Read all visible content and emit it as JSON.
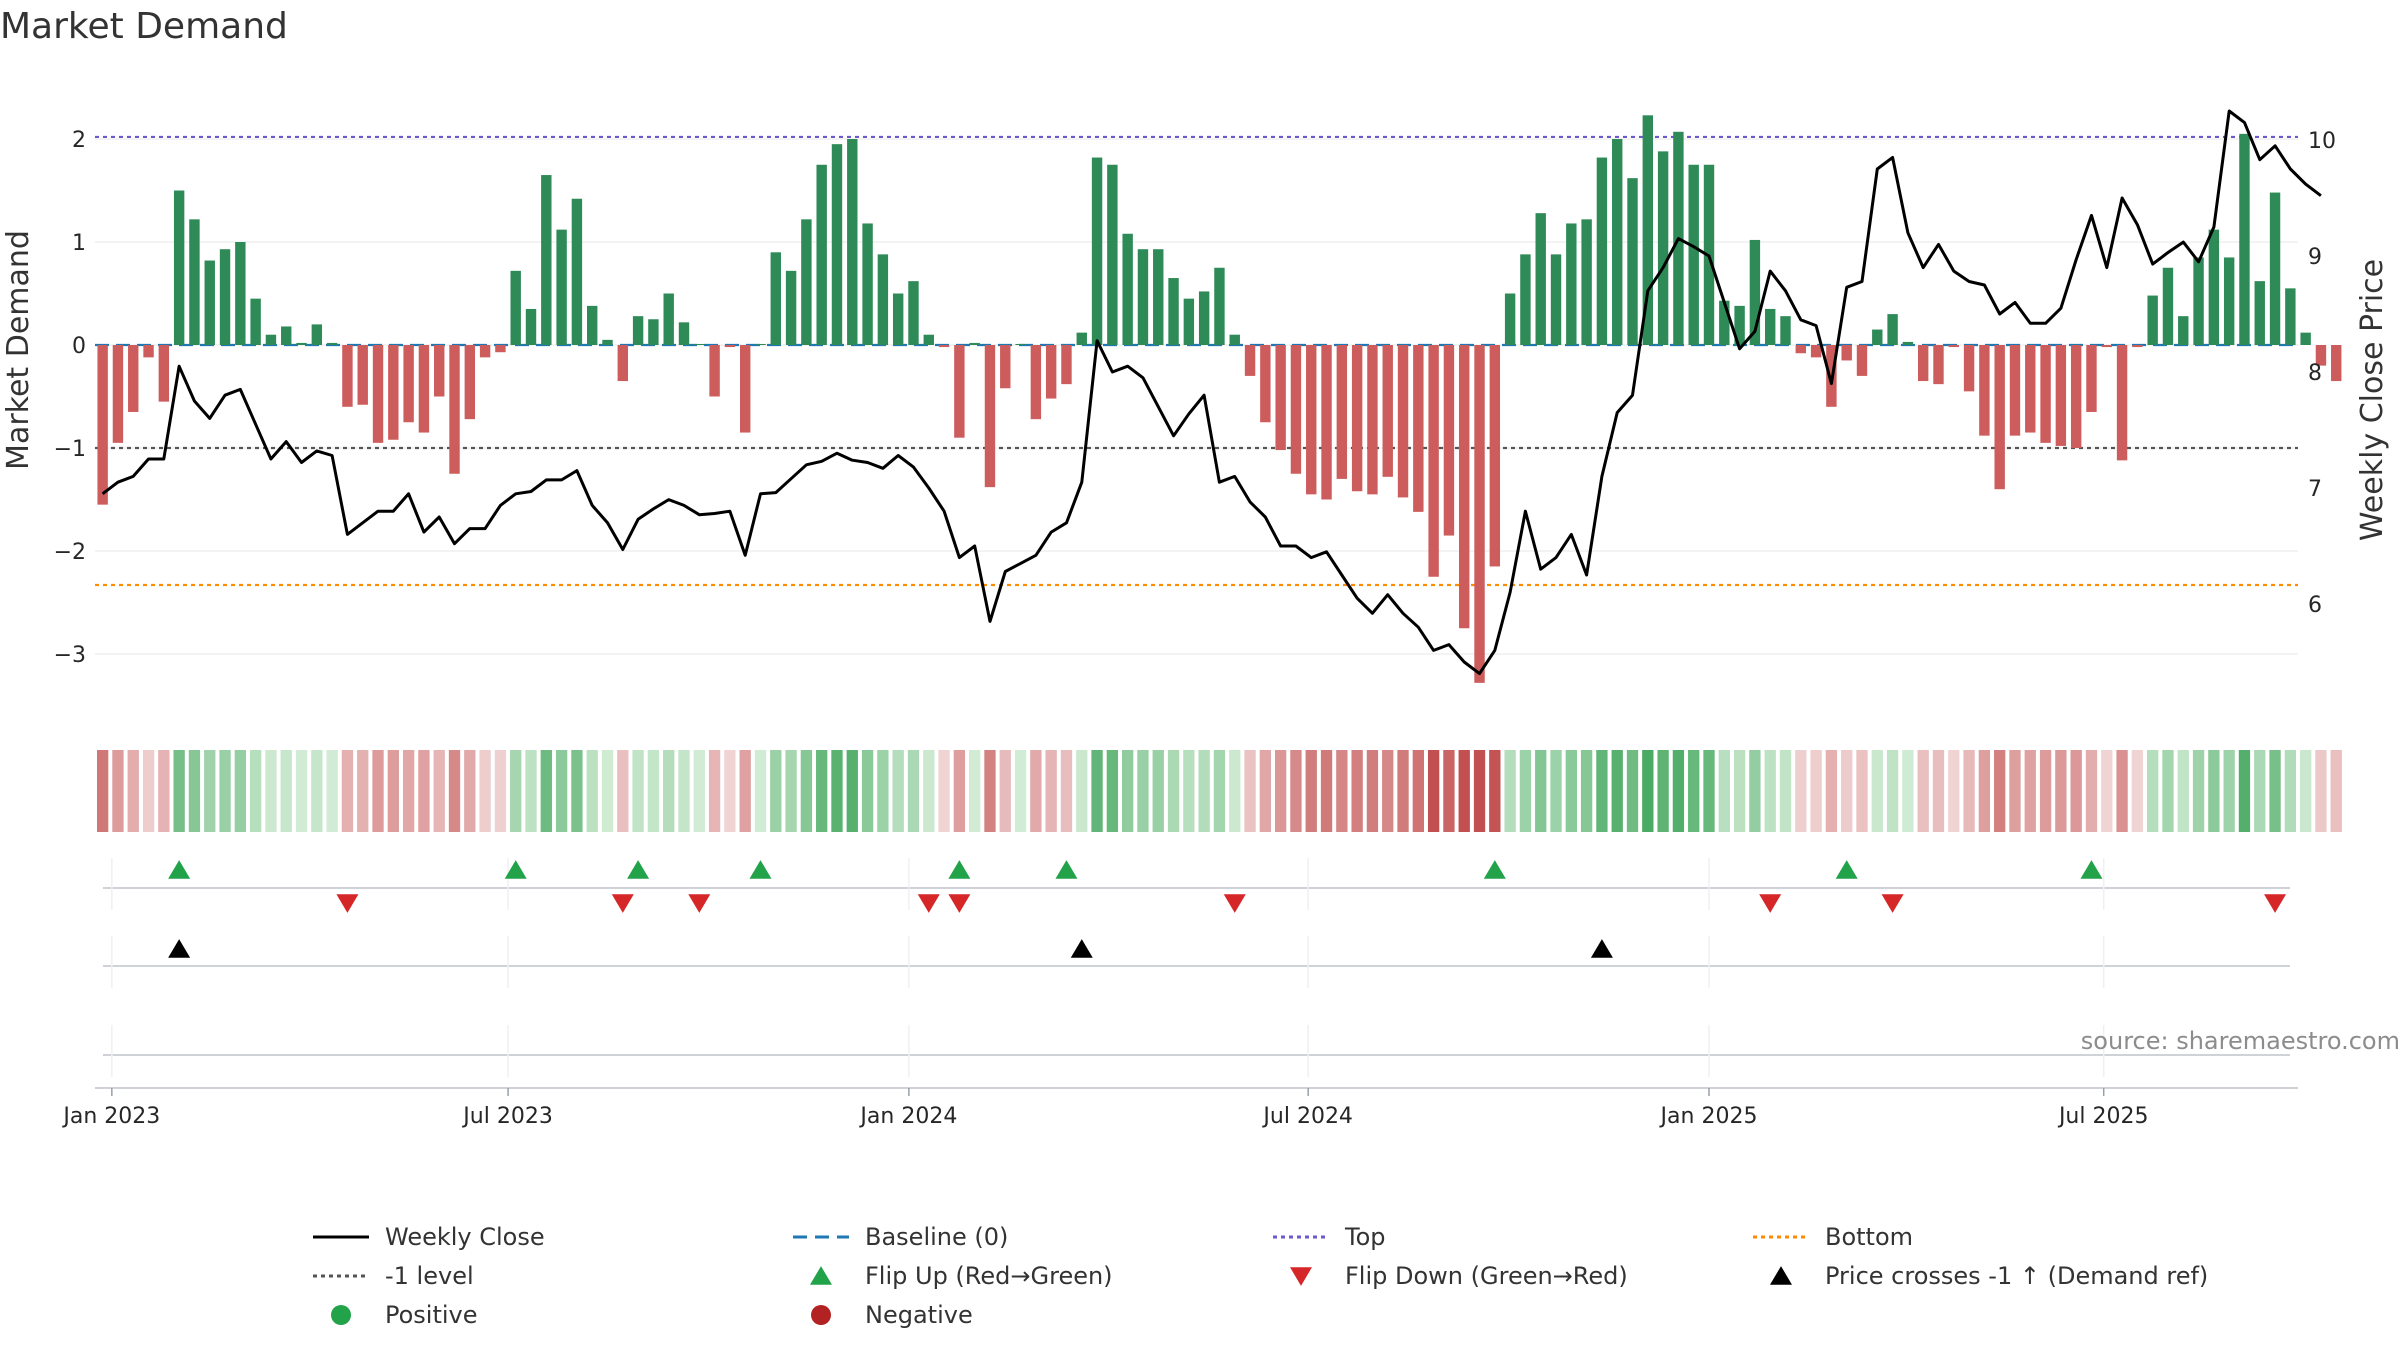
{
  "chart_data": {
    "type": "bar",
    "title": "Market Demand",
    "ylabel": "Market Demand",
    "y2label": "Weekly Close Price",
    "ylim": [
      -3.6,
      2.6
    ],
    "y2lim": [
      4.9,
      11.2
    ],
    "y_ticks": [
      2,
      1,
      0,
      -1,
      -2,
      -3
    ],
    "y_tick_labels": [
      "2",
      "1",
      "0",
      "−1",
      "−2",
      "−3"
    ],
    "y2_ticks": [
      10,
      9,
      8,
      7,
      6
    ],
    "y2_tick_labels": [
      "10",
      "9",
      "8",
      "7",
      "6"
    ],
    "x_range": [
      -0.5,
      143.5
    ],
    "x_ticks": [
      {
        "label": "Jan 2023",
        "index": 0.6
      },
      {
        "label": "Jul 2023",
        "index": 26.5
      },
      {
        "label": "Jan 2024",
        "index": 52.7
      },
      {
        "label": "Jul 2024",
        "index": 78.8
      },
      {
        "label": "Jan 2025",
        "index": 105.0
      },
      {
        "label": "Jul 2025",
        "index": 130.8
      }
    ],
    "reference_lines": {
      "top": 2.02,
      "minus_one": -1.0,
      "bottom": -2.33,
      "baseline": 0
    },
    "demand": [
      -1.55,
      -0.95,
      -0.65,
      -0.12,
      -0.55,
      1.5,
      1.22,
      0.82,
      0.93,
      1.0,
      0.45,
      0.1,
      0.18,
      0.02,
      0.2,
      0.02,
      -0.6,
      -0.58,
      -0.95,
      -0.92,
      -0.75,
      -0.85,
      -0.5,
      -1.25,
      -0.72,
      -0.12,
      -0.07,
      0.72,
      0.35,
      1.65,
      1.12,
      1.42,
      0.38,
      0.05,
      -0.35,
      0.28,
      0.25,
      0.5,
      0.22,
      0.01,
      -0.5,
      -0.02,
      -0.85,
      0.01,
      0.9,
      0.72,
      1.22,
      1.75,
      1.95,
      2.0,
      1.18,
      0.88,
      0.5,
      0.62,
      0.1,
      -0.02,
      -0.9,
      0.02,
      -1.38,
      -0.42,
      0.01,
      -0.72,
      -0.52,
      -0.38,
      0.12,
      1.82,
      1.75,
      1.08,
      0.93,
      0.93,
      0.65,
      0.45,
      0.52,
      0.75,
      0.1,
      -0.3,
      -0.75,
      -1.02,
      -1.25,
      -1.45,
      -1.5,
      -1.3,
      -1.42,
      -1.45,
      -1.28,
      -1.48,
      -1.62,
      -2.25,
      -1.85,
      -2.75,
      -3.28,
      -2.15,
      0.5,
      0.88,
      1.28,
      0.88,
      1.18,
      1.22,
      1.82,
      2.0,
      1.62,
      2.23,
      1.88,
      2.07,
      1.75,
      1.75,
      0.43,
      0.38,
      1.02,
      0.35,
      0.28,
      -0.08,
      -0.12,
      -0.6,
      -0.15,
      -0.3,
      0.15,
      0.3,
      0.03,
      -0.35,
      -0.38,
      -0.02,
      -0.45,
      -0.88,
      -1.4,
      -0.88,
      -0.85,
      -0.95,
      -0.98,
      -1.0,
      -0.65,
      -0.02,
      -1.12,
      -0.02,
      0.48,
      0.75,
      0.28,
      0.85,
      1.12,
      0.85,
      2.05,
      0.62,
      1.48,
      0.55,
      0.12,
      -0.2,
      -0.35
    ],
    "weekly_close": [
      6.95,
      7.05,
      7.1,
      7.25,
      7.25,
      8.05,
      7.75,
      7.6,
      7.8,
      7.85,
      7.55,
      7.25,
      7.4,
      7.22,
      7.32,
      7.28,
      6.6,
      6.7,
      6.8,
      6.8,
      6.95,
      6.62,
      6.75,
      6.52,
      6.65,
      6.65,
      6.85,
      6.95,
      6.97,
      7.07,
      7.07,
      7.15,
      6.85,
      6.7,
      6.47,
      6.73,
      6.82,
      6.9,
      6.85,
      6.77,
      6.78,
      6.8,
      6.42,
      6.95,
      6.96,
      7.08,
      7.2,
      7.23,
      7.3,
      7.24,
      7.22,
      7.17,
      7.28,
      7.18,
      7.0,
      6.8,
      6.4,
      6.5,
      5.85,
      6.28,
      6.35,
      6.42,
      6.62,
      6.7,
      7.05,
      8.27,
      8.0,
      8.05,
      7.95,
      7.7,
      7.45,
      7.64,
      7.8,
      7.05,
      7.1,
      6.88,
      6.75,
      6.5,
      6.5,
      6.4,
      6.45,
      6.25,
      6.05,
      5.92,
      6.08,
      5.92,
      5.8,
      5.6,
      5.65,
      5.5,
      5.4,
      5.6,
      6.1,
      6.8,
      6.3,
      6.4,
      6.6,
      6.25,
      7.1,
      7.65,
      7.8,
      8.7,
      8.9,
      9.15,
      9.08,
      9.0,
      8.6,
      8.2,
      8.35,
      8.87,
      8.7,
      8.45,
      8.4,
      7.9,
      8.73,
      8.78,
      9.75,
      9.85,
      9.2,
      8.9,
      9.1,
      8.87,
      8.78,
      8.75,
      8.5,
      8.6,
      8.42,
      8.42,
      8.55,
      8.97,
      9.35,
      8.9,
      9.5,
      9.27,
      8.93,
      9.03,
      9.12,
      8.95,
      9.25,
      10.25,
      10.15,
      9.83,
      9.95,
      9.75,
      9.62,
      9.52
    ],
    "flip_up": [
      5,
      27,
      35,
      43,
      56,
      63,
      91,
      114,
      130
    ],
    "flip_down": [
      16,
      34,
      39,
      54,
      56,
      74,
      109,
      117,
      142
    ],
    "price_crosses": [
      5,
      64,
      98
    ],
    "legend": [
      {
        "key": "weekly_close",
        "label": "Weekly Close"
      },
      {
        "key": "baseline",
        "label": "Baseline (0)"
      },
      {
        "key": "top",
        "label": "Top"
      },
      {
        "key": "bottom",
        "label": "Bottom"
      },
      {
        "key": "minus_one",
        "label": "-1 level"
      },
      {
        "key": "flip_up",
        "label": "Flip Up (Red→Green)"
      },
      {
        "key": "flip_down",
        "label": "Flip Down (Green→Red)"
      },
      {
        "key": "price_cross",
        "label": "Price crosses -1 ↑ (Demand ref)"
      },
      {
        "key": "positive",
        "label": "Positive"
      },
      {
        "key": "negative",
        "label": "Negative"
      }
    ],
    "source": "source: sharemaestro.com",
    "colors": {
      "positive_bar": "#2e8b57",
      "negative_bar": "#cd5c5c",
      "weekly_close": "#000000",
      "baseline": "#1f77b4",
      "top": "#6a5acd",
      "bottom": "#ff8c00",
      "minus_one": "#555555",
      "flip_up": "#22a34a",
      "flip_down": "#d62728",
      "price_cross": "#000000",
      "positive_dot": "#22a34a",
      "negative_dot": "#b22222"
    }
  }
}
